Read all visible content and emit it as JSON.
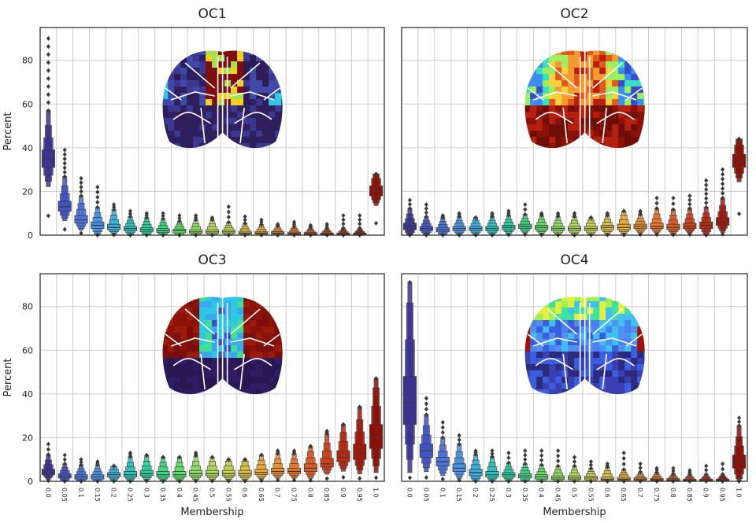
{
  "chart_data": [
    {
      "type": "boxen",
      "title": "OC1",
      "ylabel": "Percent",
      "xlabel": "",
      "ylim": [
        0,
        95
      ],
      "yticks": [
        0,
        20,
        40,
        60,
        80
      ],
      "grid": true,
      "inset": "brain-map",
      "categories": [
        "0.0",
        "0.05",
        "0.1",
        "0.15",
        "0.2",
        "0.25",
        "0.3",
        "0.35",
        "0.4",
        "0.45",
        "0.5",
        "0.55",
        "0.6",
        "0.65",
        "0.7",
        "0.75",
        "0.8",
        "0.85",
        "0.9",
        "0.95",
        "1.0"
      ],
      "colors": [
        "#3b3490",
        "#4253c3",
        "#4a72d8",
        "#4792e6",
        "#3aaeda",
        "#2cc2be",
        "#2ccfa0",
        "#3cd883",
        "#5fde6a",
        "#8ee065",
        "#b0dc5c",
        "#c9d350",
        "#e0c040",
        "#ecaa38",
        "#ee9030",
        "#e8752a",
        "#dc5a24",
        "#cc411c",
        "#b62a14",
        "#9e1a0c",
        "#8a1208"
      ],
      "medians": [
        35,
        13,
        7,
        4.5,
        3.5,
        3,
        2.5,
        2,
        2,
        1.5,
        1.5,
        1.5,
        1,
        1,
        1,
        0.8,
        0.7,
        0.5,
        0.5,
        0.5,
        20
      ],
      "q1": [
        31,
        11,
        5.5,
        3,
        2.5,
        2,
        1.5,
        1.2,
        1,
        0.8,
        0.8,
        0.8,
        0.5,
        0.5,
        0.5,
        0.4,
        0.3,
        0.2,
        0.2,
        0.2,
        18
      ],
      "q3": [
        39,
        15.5,
        9,
        6,
        5,
        4,
        3.5,
        3,
        2.8,
        2.5,
        2.5,
        2.3,
        1.8,
        1.7,
        1.6,
        1.4,
        1.2,
        1,
        1,
        1,
        22.5
      ],
      "maxima": [
        90,
        39,
        26,
        22,
        14,
        11,
        10,
        10,
        9,
        9,
        8,
        13,
        8.5,
        7,
        5,
        6,
        4.5,
        5,
        9,
        9,
        28
      ]
    },
    {
      "type": "boxen",
      "title": "OC2",
      "ylabel": "",
      "xlabel": "",
      "ylim": [
        0,
        95
      ],
      "yticks": [
        0,
        20,
        40,
        60,
        80
      ],
      "grid": true,
      "inset": "brain-map",
      "categories": [
        "0.0",
        "0.05",
        "0.1",
        "0.15",
        "0.2",
        "0.25",
        "0.3",
        "0.35",
        "0.4",
        "0.45",
        "0.5",
        "0.55",
        "0.6",
        "0.65",
        "0.7",
        "0.75",
        "0.8",
        "0.85",
        "0.9",
        "0.95",
        "1.0"
      ],
      "colors": [
        "#3b3490",
        "#4253c3",
        "#4a72d8",
        "#4792e6",
        "#3aaeda",
        "#2cc2be",
        "#2ccfa0",
        "#3cd883",
        "#5fde6a",
        "#8ee065",
        "#b0dc5c",
        "#c9d350",
        "#e0c040",
        "#ecaa38",
        "#ee9030",
        "#e8752a",
        "#dc5a24",
        "#cc411c",
        "#b62a14",
        "#9e1a0c",
        "#8a1208"
      ],
      "medians": [
        4,
        3,
        2.5,
        3,
        3,
        3,
        3.5,
        4,
        3.5,
        3,
        3,
        3,
        3.5,
        3.5,
        4,
        4,
        3.5,
        4,
        4.5,
        6,
        34
      ],
      "q1": [
        2.5,
        2,
        1.5,
        2,
        2,
        2,
        2.5,
        3,
        2.5,
        2,
        2,
        2,
        2.5,
        2.5,
        3,
        3,
        2.5,
        3,
        3,
        4.5,
        31
      ],
      "q3": [
        5.5,
        4,
        3.5,
        4,
        4,
        4,
        4.5,
        5,
        4.5,
        4,
        4,
        4,
        4.5,
        5,
        5,
        5.5,
        5,
        5.5,
        6,
        8,
        37
      ],
      "maxima": [
        16,
        14,
        9,
        10,
        8,
        10,
        11,
        14,
        10,
        10,
        10,
        8,
        10,
        11,
        11,
        17,
        17,
        18,
        25,
        30,
        44
      ]
    },
    {
      "type": "boxen",
      "title": "OC3",
      "ylabel": "Percent",
      "xlabel": "Membership",
      "ylim": [
        0,
        95
      ],
      "yticks": [
        0,
        20,
        40,
        60,
        80
      ],
      "grid": true,
      "inset": "brain-map",
      "categories": [
        "0.0",
        "0.05",
        "0.1",
        "0.15",
        "0.2",
        "0.25",
        "0.3",
        "0.35",
        "0.4",
        "0.45",
        "0.5",
        "0.55",
        "0.6",
        "0.65",
        "0.7",
        "0.75",
        "0.8",
        "0.85",
        "0.9",
        "0.95",
        "1.0"
      ],
      "colors": [
        "#3b3490",
        "#4253c3",
        "#4a72d8",
        "#4792e6",
        "#3aaeda",
        "#2cc2be",
        "#2ccfa0",
        "#3cd883",
        "#5fde6a",
        "#8ee065",
        "#b0dc5c",
        "#c9d350",
        "#e0c040",
        "#ecaa38",
        "#ee9030",
        "#e8752a",
        "#dc5a24",
        "#cc411c",
        "#b62a14",
        "#9e1a0c",
        "#8a1208"
      ],
      "medians": [
        4,
        2.5,
        2,
        2,
        3,
        3,
        3.5,
        3,
        3,
        3.5,
        3.5,
        3.5,
        3.5,
        4,
        4.5,
        4.5,
        6,
        8,
        11,
        13,
        20
      ],
      "q1": [
        3,
        1.5,
        1,
        1,
        2,
        2,
        2.5,
        2,
        2,
        2.5,
        2.5,
        2.5,
        2.5,
        3,
        3.5,
        3.5,
        4.5,
        6.5,
        9,
        10,
        15
      ],
      "q3": [
        5.5,
        3.5,
        3,
        3,
        4,
        4.5,
        5,
        4.5,
        4.5,
        5,
        5,
        5,
        5,
        5.5,
        6,
        6,
        8,
        10.5,
        14,
        17,
        26
      ],
      "maxima": [
        17,
        12,
        10,
        9,
        7,
        13,
        12,
        11,
        11,
        13,
        11,
        10,
        10,
        12,
        14,
        14,
        16,
        23,
        26,
        34,
        47
      ]
    },
    {
      "type": "boxen",
      "title": "OC4",
      "ylabel": "",
      "xlabel": "Membership",
      "ylim": [
        0,
        95
      ],
      "yticks": [
        0,
        20,
        40,
        60,
        80
      ],
      "grid": true,
      "inset": "brain-map",
      "categories": [
        "0.0",
        "0.05",
        "0.1",
        "0.15",
        "0.2",
        "0.25",
        "0.3",
        "0.35",
        "0.4",
        "0.45",
        "0.5",
        "0.55",
        "0.6",
        "0.65",
        "0.7",
        "0.75",
        "0.8",
        "0.85",
        "0.9",
        "0.95",
        "1.0"
      ],
      "colors": [
        "#3b3490",
        "#4253c3",
        "#4a72d8",
        "#4792e6",
        "#3aaeda",
        "#2cc2be",
        "#2ccfa0",
        "#3cd883",
        "#5fde6a",
        "#8ee065",
        "#b0dc5c",
        "#c9d350",
        "#e0c040",
        "#ecaa38",
        "#ee9030",
        "#e8752a",
        "#dc5a24",
        "#cc411c",
        "#b62a14",
        "#9e1a0c",
        "#8a1208"
      ],
      "medians": [
        36,
        14,
        9,
        6,
        4,
        3,
        3,
        2.5,
        2,
        1.5,
        1.5,
        1.5,
        1,
        1,
        1,
        0.8,
        0.7,
        0.5,
        0.5,
        0.5,
        9
      ],
      "q1": [
        26,
        11,
        7,
        4.5,
        2.5,
        2,
        2,
        1.5,
        1,
        0.8,
        0.8,
        0.7,
        0.5,
        0.5,
        0.5,
        0.4,
        0.3,
        0.2,
        0.2,
        0.2,
        6
      ],
      "q3": [
        48,
        17,
        11,
        8,
        5.5,
        4.5,
        4,
        3.5,
        3,
        2.5,
        2.5,
        2.3,
        2,
        1.8,
        1.6,
        1.4,
        1.2,
        1,
        1,
        1,
        12
      ],
      "maxima": [
        91,
        38,
        27,
        21,
        14,
        14,
        13,
        14,
        14,
        14,
        11,
        9,
        8,
        13,
        8,
        6,
        6,
        5,
        7,
        8,
        29
      ]
    }
  ]
}
